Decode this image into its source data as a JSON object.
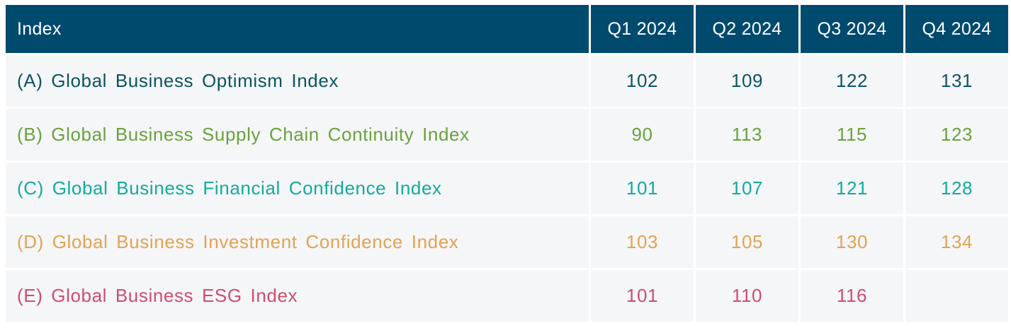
{
  "chart_data": {
    "type": "table",
    "columns": [
      "Index",
      "Q1 2024",
      "Q2 2024",
      "Q3 2024",
      "Q4 2024"
    ],
    "rows": [
      {
        "label": "(A) Global Business Optimism Index",
        "color": "#0b5561",
        "values": [
          "102",
          "109",
          "122",
          "131"
        ]
      },
      {
        "label": "(B) Global Business Supply Chain Continuity Index",
        "color": "#6aa23e",
        "values": [
          "90",
          "113",
          "115",
          "123"
        ]
      },
      {
        "label": "(C) Global Business Financial Confidence Index",
        "color": "#12aaa0",
        "values": [
          "101",
          "107",
          "121",
          "128"
        ]
      },
      {
        "label": "(D) Global Business Investment Confidence Index",
        "color": "#e3a352",
        "values": [
          "103",
          "105",
          "130",
          "134"
        ]
      },
      {
        "label": "(E) Global Business ESG Index",
        "color": "#cf4d6f",
        "values": [
          "101",
          "110",
          "116",
          ""
        ]
      }
    ]
  },
  "colors": {
    "header_bg": "#004a6e",
    "header_text": "#ffffff",
    "cell_bg": "#f5f6f8"
  }
}
